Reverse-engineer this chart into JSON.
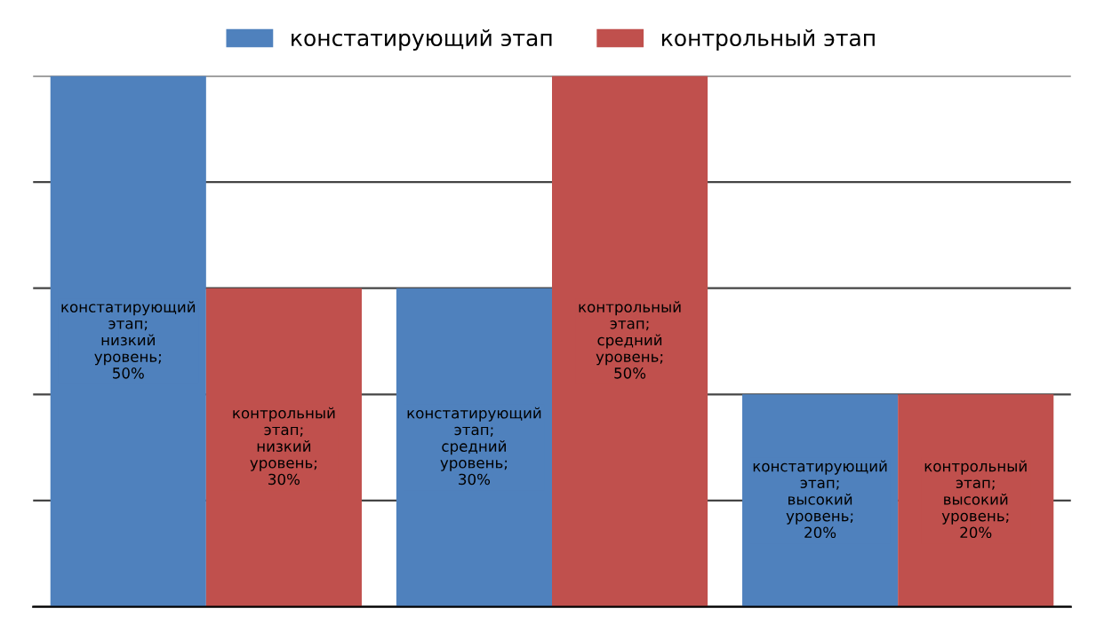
{
  "chart_data": {
    "type": "bar",
    "categories": [
      null,
      null,
      null
    ],
    "series": [
      {
        "name": "констатирующий этап",
        "color": "#4f81bd",
        "values": [
          50,
          30,
          20
        ],
        "value_labels": [
          "констатирующий этап; низкий уровень; 50%",
          "констатирующий этап; средний уровень; 30%",
          "констатирующий этап; высокий уровень; 20%"
        ]
      },
      {
        "name": "контрольный этап",
        "color": "#c0504d",
        "values": [
          30,
          50,
          20
        ],
        "value_labels": [
          "контрольный этап; низкий уровень; 30%",
          "контрольный этап; средний уровень; 50%",
          "контрольный этап; высокий уровень; 20%"
        ]
      }
    ],
    "ylim": [
      0,
      50
    ],
    "yticks": [
      {
        "value": 0,
        "label": null
      },
      {
        "value": 10,
        "label": null
      },
      {
        "value": 20,
        "label": null
      },
      {
        "value": 30,
        "label": null
      },
      {
        "value": 40,
        "label": null
      },
      {
        "value": 50,
        "label": null
      }
    ],
    "grid": "y",
    "legend": "top"
  }
}
